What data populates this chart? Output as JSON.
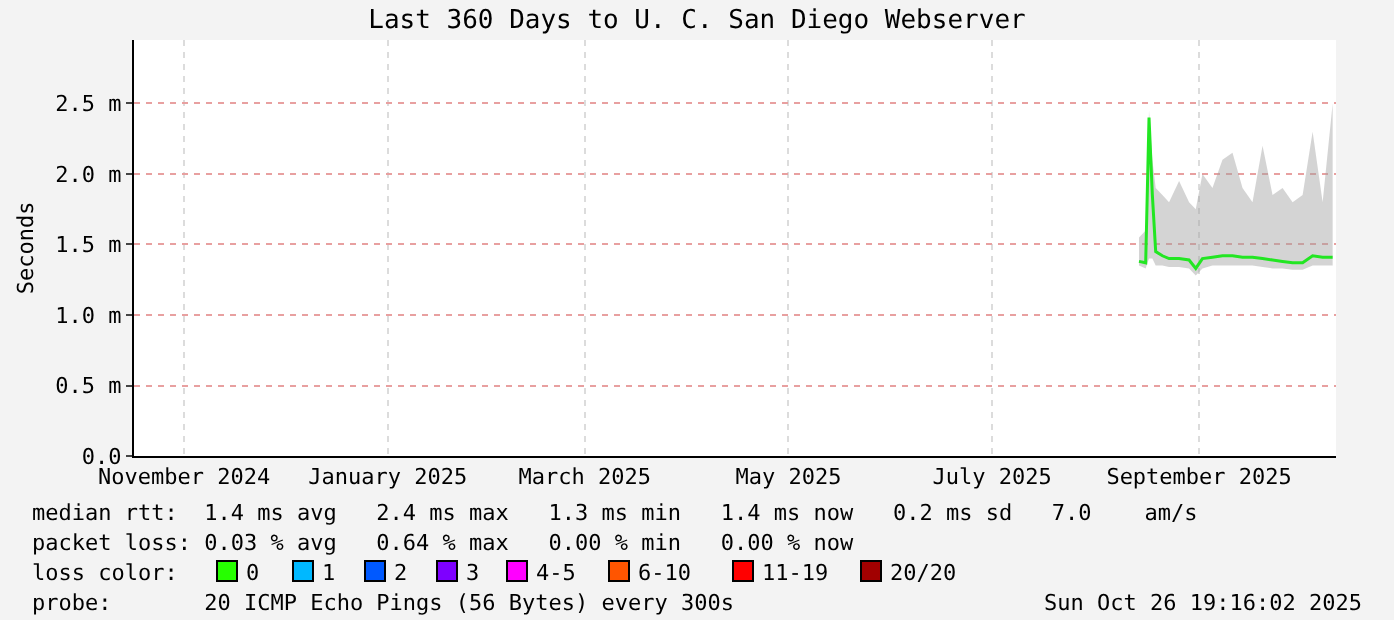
{
  "chart_data": {
    "type": "line",
    "title": "Last 360 Days to U. C. San Diego Webserver",
    "ylabel": "Seconds",
    "x": [
      "2025-08-28",
      "2025-08-30",
      "2025-08-31",
      "2025-09-01",
      "2025-09-02",
      "2025-09-04",
      "2025-09-06",
      "2025-09-09",
      "2025-09-12",
      "2025-09-14",
      "2025-09-16",
      "2025-09-19",
      "2025-09-22",
      "2025-09-25",
      "2025-09-28",
      "2025-10-01",
      "2025-10-04",
      "2025-10-07",
      "2025-10-10",
      "2025-10-13",
      "2025-10-16",
      "2025-10-19",
      "2025-10-22",
      "2025-10-25"
    ],
    "series": [
      {
        "color": "#22e622",
        "values": [
          1.38,
          1.37,
          2.4,
          1.85,
          1.45,
          1.42,
          1.4,
          1.4,
          1.39,
          1.33,
          1.4,
          1.41,
          1.42,
          1.42,
          1.41,
          1.41,
          1.4,
          1.39,
          1.38,
          1.37,
          1.37,
          1.42,
          1.41,
          1.41
        ],
        "lower": [
          1.35,
          1.33,
          1.4,
          1.4,
          1.35,
          1.35,
          1.34,
          1.34,
          1.33,
          1.28,
          1.33,
          1.35,
          1.35,
          1.35,
          1.35,
          1.35,
          1.34,
          1.33,
          1.33,
          1.32,
          1.32,
          1.35,
          1.35,
          1.35
        ],
        "upper": [
          1.55,
          1.6,
          2.45,
          2.1,
          1.9,
          1.85,
          1.8,
          1.95,
          1.8,
          1.75,
          2.0,
          1.9,
          2.1,
          2.15,
          1.9,
          1.8,
          2.2,
          1.85,
          1.9,
          1.8,
          1.85,
          2.3,
          1.8,
          2.5
        ]
      }
    ],
    "xlim": [
      "2024-10-31",
      "2025-10-26"
    ],
    "xticks": [
      {
        "value": "2024-11-15",
        "label": "November 2024"
      },
      {
        "value": "2025-01-15",
        "label": "January 2025"
      },
      {
        "value": "2025-03-15",
        "label": "March 2025"
      },
      {
        "value": "2025-05-15",
        "label": "May 2025"
      },
      {
        "value": "2025-07-15",
        "label": "July 2025"
      },
      {
        "value": "2025-09-15",
        "label": "September 2025"
      }
    ],
    "ylim": [
      0,
      2.95
    ],
    "yticks": [
      {
        "value": 0,
        "label": "0.0"
      },
      {
        "value": 0.5,
        "label": "0.5 m"
      },
      {
        "value": 1,
        "label": "1.0 m"
      },
      {
        "value": 1.5,
        "label": "1.5 m"
      },
      {
        "value": 2,
        "label": "2.0 m"
      },
      {
        "value": 2.5,
        "label": "2.5 m"
      }
    ],
    "grid": true,
    "annotations": [
      "median rtt:  1.4 ms avg   2.4 ms max   1.3 ms min   1.4 ms now   0.2 ms sd   7.0    am/s",
      "packet loss: 0.03 % avg   0.64 % max   0.00 % min   0.00 % now",
      "loss color:",
      "0",
      "1",
      "2",
      "3",
      "4-5",
      "6-10",
      "11-19",
      "20/20",
      "probe:       20 ICMP Echo Pings (56 Bytes) every 300s",
      "Sun Oct 26 19:16:02 2025"
    ]
  }
}
